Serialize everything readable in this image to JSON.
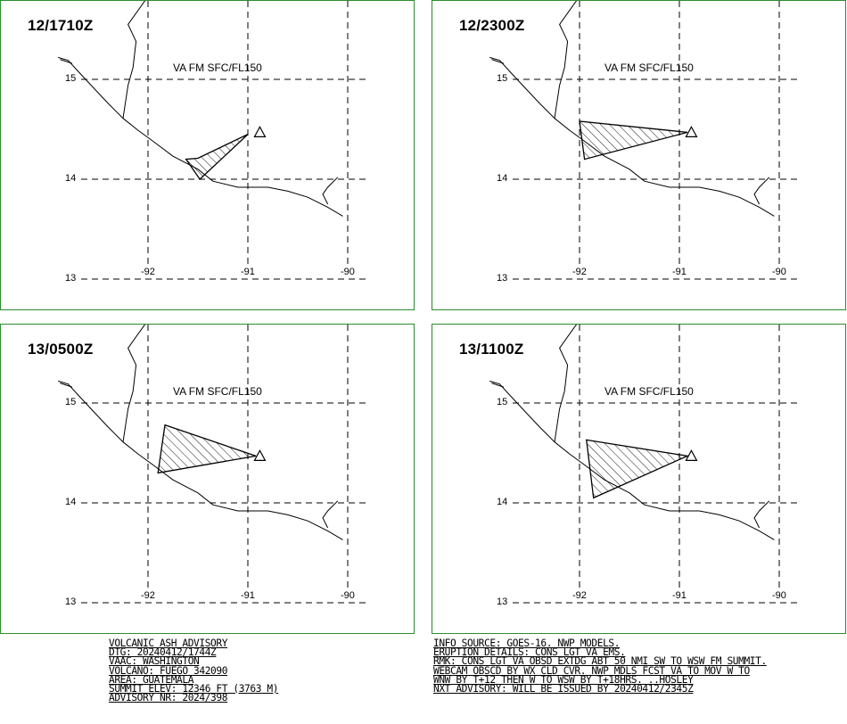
{
  "panels": [
    {
      "title": "12/1710Z",
      "label": "VA FM SFC/FL150",
      "polygon": [
        [
          -91.0,
          14.45
        ],
        [
          -91.5,
          14.21
        ],
        [
          -91.62,
          14.2
        ],
        [
          -91.48,
          14.0
        ],
        [
          -91.0,
          14.45
        ]
      ]
    },
    {
      "title": "12/2300Z",
      "label": "VA FM SFC/FL150",
      "polygon": [
        [
          -90.92,
          14.47
        ],
        [
          -92.0,
          14.58
        ],
        [
          -91.95,
          14.2
        ],
        [
          -90.92,
          14.47
        ]
      ]
    },
    {
      "title": "13/0500Z",
      "label": "VA FM SFC/FL150",
      "polygon": [
        [
          -90.92,
          14.47
        ],
        [
          -91.83,
          14.78
        ],
        [
          -91.9,
          14.3
        ],
        [
          -90.92,
          14.47
        ]
      ]
    },
    {
      "title": "13/1100Z",
      "label": "VA FM SFC/FL150",
      "polygon": [
        [
          -90.92,
          14.47
        ],
        [
          -91.93,
          14.63
        ],
        [
          -91.86,
          14.05
        ],
        [
          -90.92,
          14.47
        ]
      ]
    }
  ],
  "axes": {
    "lat_labels": [
      "15",
      "14",
      "13"
    ],
    "lon_labels": [
      "-92",
      "-91",
      "-90"
    ]
  },
  "advisory": {
    "left_lines": [
      "VOLCANIC ASH ADVISORY",
      "DTG: 20240412/1744Z",
      "VAAC: WASHINGTON",
      "VOLCANO: FUEGO 342090",
      "AREA: GUATEMALA",
      "SUMMIT ELEV: 12346 FT (3763 M)",
      "ADVISORY NR: 2024/398"
    ],
    "right_lines": [
      "INFO SOURCE: GOES-16. NWP MODELS.",
      "ERUPTION DETAILS: CONS LGT VA EMS.",
      "RMK: CONS LGT VA OBSD EXTDG ABT 50 NMI SW TO WSW FM SUMMIT.",
      "WEBCAM OBSCD BY WX CLD CVR. NWP MDLS FCST VA TO MOV W TO",
      "WNW BY T+12 THEN W TO WSW BY T+18HRS. ..HOSLEY",
      "NXT ADVISORY: WILL BE ISSUED BY 20240412/2345Z"
    ]
  },
  "colors": {
    "frame": "#2e8b2e",
    "line": "#000000"
  }
}
